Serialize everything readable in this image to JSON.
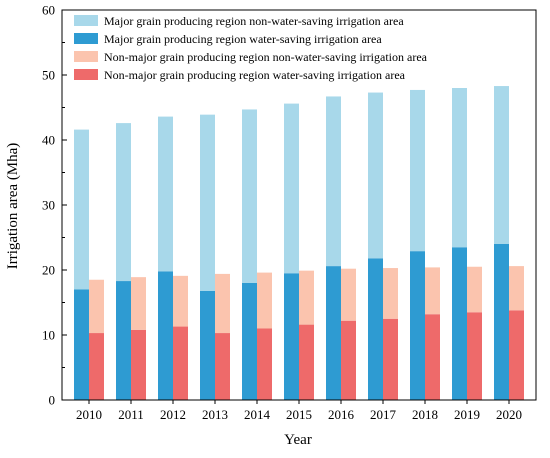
{
  "chart_data": {
    "type": "bar",
    "stacked": true,
    "title": "",
    "xlabel": "Year",
    "ylabel": "Irrigation area (Mha)",
    "ylim": [
      0,
      60
    ],
    "yticks": [
      0,
      10,
      20,
      30,
      40,
      50,
      60
    ],
    "grid": false,
    "legend_position": "top-left",
    "categories": [
      "2010",
      "2011",
      "2012",
      "2013",
      "2014",
      "2015",
      "2016",
      "2017",
      "2018",
      "2019",
      "2020"
    ],
    "groups": [
      {
        "name": "Major grain producing region",
        "segments": [
          {
            "name": "Major grain producing region water-saving irrigation area",
            "color": "#2e9bd2",
            "values": [
              17.0,
              18.3,
              19.8,
              16.8,
              18.0,
              19.5,
              20.6,
              21.8,
              22.9,
              23.5,
              24.0
            ]
          },
          {
            "name": "Major grain producing region non-water-saving irrigation area",
            "color": "#a8d8ea",
            "values": [
              24.6,
              24.3,
              23.8,
              27.1,
              26.7,
              26.1,
              26.1,
              25.5,
              24.8,
              24.5,
              24.3
            ]
          }
        ]
      },
      {
        "name": "Non-major grain producing region",
        "segments": [
          {
            "name": "Non-major grain producing region water-saving irrigation area",
            "color": "#ee6a6a",
            "values": [
              10.3,
              10.8,
              11.3,
              10.3,
              11.0,
              11.6,
              12.2,
              12.5,
              13.2,
              13.5,
              13.8
            ]
          },
          {
            "name": "Non-major grain producing region non-water-saving irrigation area",
            "color": "#fbc4ae",
            "values": [
              8.2,
              8.1,
              7.8,
              9.1,
              8.6,
              8.3,
              8.0,
              7.8,
              7.2,
              7.0,
              6.8
            ]
          }
        ]
      }
    ],
    "legend": [
      {
        "label": "Major grain producing region non-water-saving irrigation area",
        "color": "#a8d8ea"
      },
      {
        "label": "Major grain producing region water-saving irrigation area",
        "color": "#2e9bd2"
      },
      {
        "label": "Non-major grain producing region non-water-saving irrigation area",
        "color": "#fbc4ae"
      },
      {
        "label": "Non-major grain producing region water-saving irrigation area",
        "color": "#ee6a6a"
      }
    ]
  }
}
